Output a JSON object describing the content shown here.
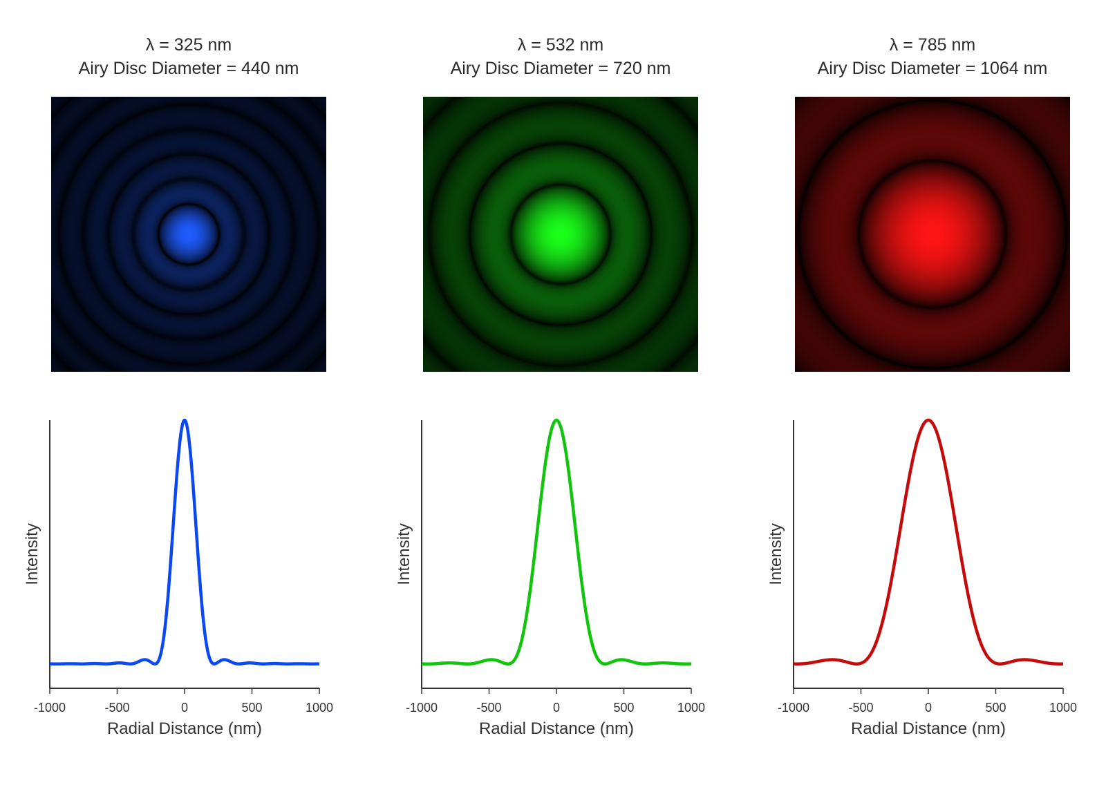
{
  "chart_data": [
    {
      "type": "line",
      "title_line1": "λ = 325 nm",
      "title_line2": "Airy Disc Diameter = 440 nm",
      "wavelength_nm": 325,
      "airy_disc_diameter_nm": 440,
      "color": "#0a48f2",
      "image_color": "#1f5cff",
      "xlabel": "Radial Distance (nm)",
      "ylabel": "Intensity",
      "xlim": [
        -1000,
        1000
      ],
      "ylim": [
        -0.1,
        1.0
      ],
      "xticks": [
        "-1000",
        "-500",
        "0",
        "500",
        "1000"
      ],
      "function": "airy: I(x) = [2·J1(v)/v]^2, v = 3.8317·2|x|/D",
      "sample_points": [
        [
          -1000,
          0.0002
        ],
        [
          -500,
          0.004
        ],
        [
          -300,
          0.017
        ],
        [
          -220,
          0.0
        ],
        [
          -110,
          0.37
        ],
        [
          0,
          1.0
        ],
        [
          110,
          0.37
        ],
        [
          220,
          0.0
        ],
        [
          300,
          0.017
        ],
        [
          500,
          0.004
        ],
        [
          1000,
          0.0002
        ]
      ],
      "grid": false,
      "legend": "none"
    },
    {
      "type": "line",
      "title_line1": "λ = 532 nm",
      "title_line2": "Airy Disc Diameter = 720 nm",
      "wavelength_nm": 532,
      "airy_disc_diameter_nm": 720,
      "color": "#11c40c",
      "image_color": "#19ff19",
      "xlabel": "Radial Distance (nm)",
      "ylabel": "Intensity",
      "xlim": [
        -1000,
        1000
      ],
      "ylim": [
        -0.1,
        1.0
      ],
      "xticks": [
        "-1000",
        "-500",
        "0",
        "500",
        "1000"
      ],
      "function": "airy: I(x) = [2·J1(v)/v]^2, v = 3.8317·2|x|/D",
      "sample_points": [
        [
          -1000,
          0.0015
        ],
        [
          -800,
          0.004
        ],
        [
          -490,
          0.017
        ],
        [
          -360,
          0.0
        ],
        [
          -180,
          0.37
        ],
        [
          0,
          1.0
        ],
        [
          180,
          0.37
        ],
        [
          360,
          0.0
        ],
        [
          490,
          0.017
        ],
        [
          800,
          0.004
        ],
        [
          1000,
          0.0015
        ]
      ],
      "grid": false,
      "legend": "none"
    },
    {
      "type": "line",
      "title_line1": "λ = 785 nm",
      "title_line2": "Airy Disc Diameter = 1064 nm",
      "wavelength_nm": 785,
      "airy_disc_diameter_nm": 1064,
      "color": "#c40a0a",
      "image_color": "#ff1414",
      "xlabel": "Radial Distance (nm)",
      "ylabel": "Intensity",
      "xlim": [
        -1000,
        1000
      ],
      "ylim": [
        -0.1,
        1.0
      ],
      "xticks": [
        "-1000",
        "-500",
        "0",
        "500",
        "1000"
      ],
      "function": "airy: I(x) = [2·J1(v)/v]^2, v = 3.8317·2|x|/D",
      "sample_points": [
        [
          -1000,
          0.001
        ],
        [
          -720,
          0.017
        ],
        [
          -532,
          0.0
        ],
        [
          -266,
          0.37
        ],
        [
          0,
          1.0
        ],
        [
          266,
          0.37
        ],
        [
          532,
          0.0
        ],
        [
          720,
          0.017
        ],
        [
          1000,
          0.001
        ]
      ],
      "grid": false,
      "legend": "none"
    }
  ]
}
